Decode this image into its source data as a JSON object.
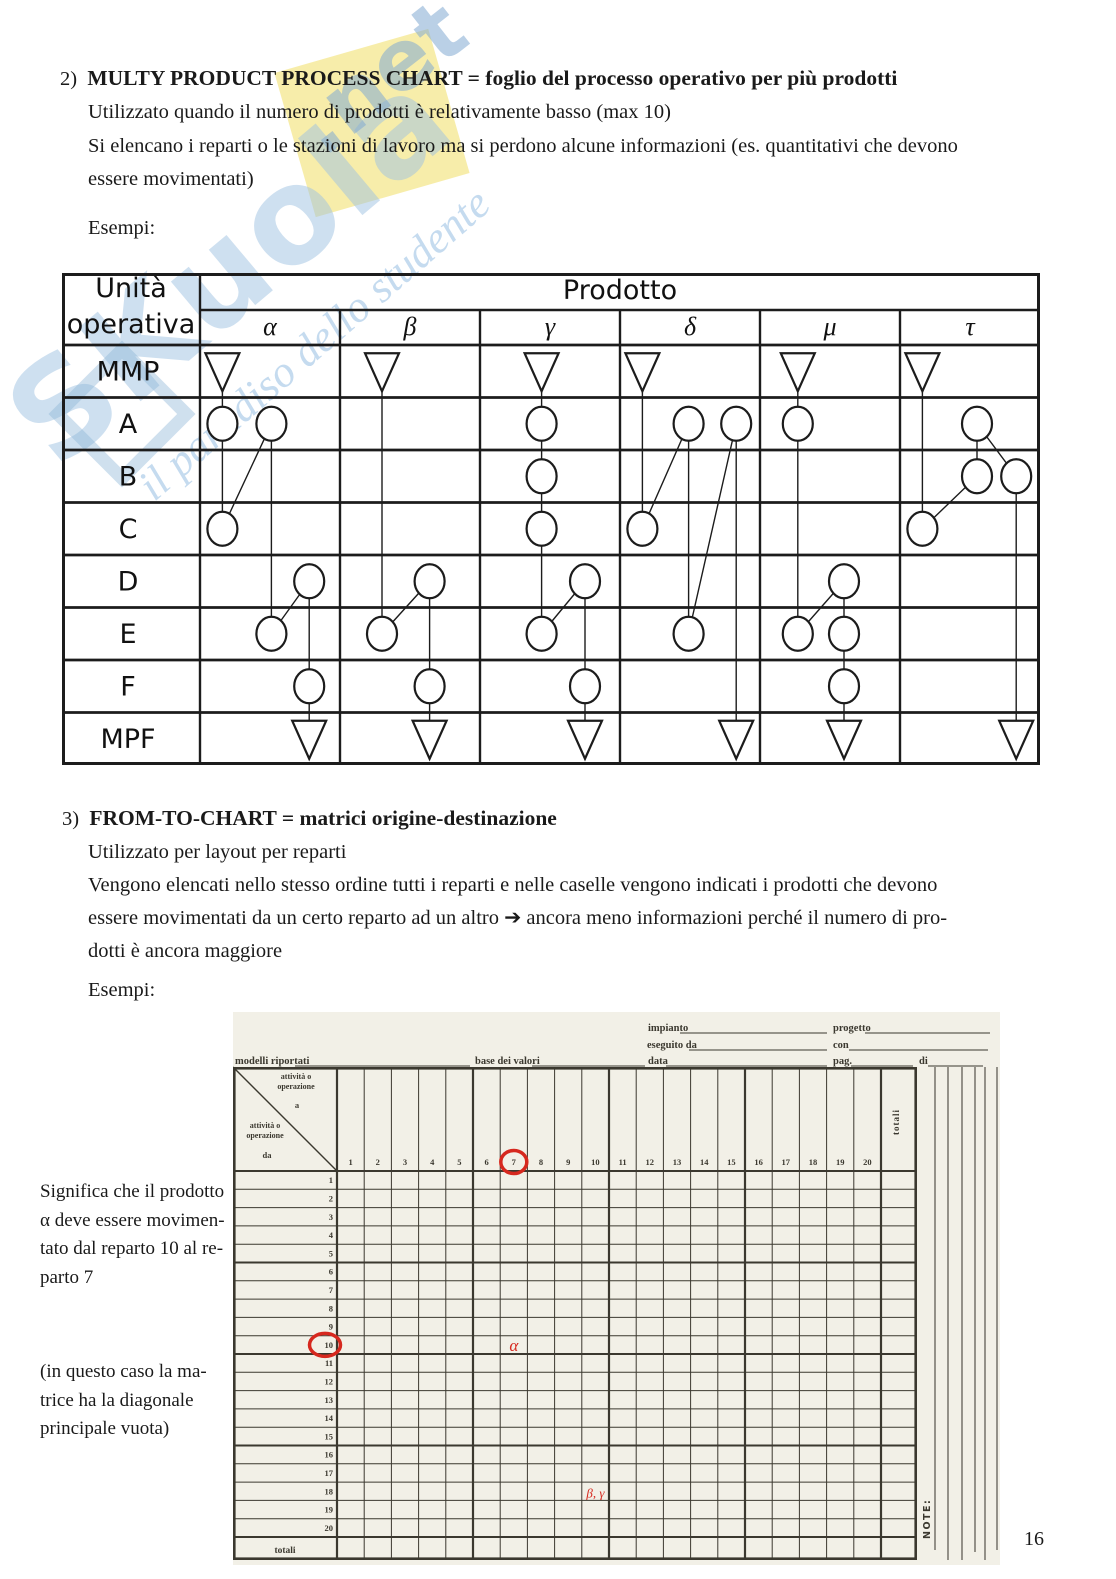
{
  "page": {
    "number": "16"
  },
  "watermark": {
    "brand": "SKuola",
    "net": ".net",
    "slogan": "il paradiso dello studente",
    "blue": "#9ec2e2",
    "yellow": "#f6eba3"
  },
  "section2": {
    "number": "2)",
    "title": "MULTY PRODUCT PROCESS CHART = foglio del processo operativo per più prodotti",
    "lines": [
      "Utilizzato quando il numero di prodotti è relativamente basso (max 10)",
      "Si elencano i reparti o le stazioni di lavoro ma si perdono alcune informazioni (es. quantitativi che devono",
      "essere movimentati)"
    ],
    "example_label": "Esempi:"
  },
  "section3": {
    "number": "3)",
    "title": "FROM-TO-CHART = matrici origine-destinazione",
    "lines": [
      "Utilizzato per layout per reparti",
      "Vengono elencati nello stesso ordine tutti i reparti e nelle caselle vengono indicati i prodotti che devono",
      "essere movimentati da un certo reparto ad un altro ➔ ancora meno informazioni perché il numero di pro-",
      "dotti è ancora maggiore"
    ],
    "example_label": "Esempi:"
  },
  "annotations": {
    "note1_lines": [
      "Significa che il prodotto",
      "α deve essere movimen-",
      "tato dal reparto 10 al re-",
      "parto 7"
    ],
    "note2_lines": [
      "(in questo caso la ma-",
      "trice ha la diagonale",
      "principale vuota)"
    ]
  },
  "chart_data": [
    {
      "type": "table",
      "name": "multi-product-process-chart",
      "corner_header": [
        "Unità",
        "operativa"
      ],
      "col_group_header": "Prodotto",
      "columns": [
        "α",
        "β",
        "γ",
        "δ",
        "μ",
        "τ"
      ],
      "rows": [
        "MMP",
        "A",
        "B",
        "C",
        "D",
        "E",
        "F",
        "MPF"
      ],
      "symbols": {
        "MMP": "triangle-down",
        "MPF": "triangle-down",
        "default": "circle"
      },
      "routes": [
        {
          "product": "α",
          "tracks": [
            0.16,
            0.51,
            0.78
          ],
          "path": [
            [
              "MMP",
              0
            ],
            [
              "A",
              0
            ],
            [
              "C",
              0
            ],
            [
              "A",
              1
            ],
            [
              "E",
              1
            ],
            [
              "D",
              2
            ],
            [
              "F",
              2
            ],
            [
              "MPF",
              2
            ]
          ]
        },
        {
          "product": "β",
          "tracks": [
            0.3,
            0.64
          ],
          "path": [
            [
              "MMP",
              0
            ],
            [
              "E",
              0
            ],
            [
              "D",
              1
            ],
            [
              "F",
              1
            ],
            [
              "MPF",
              1
            ]
          ]
        },
        {
          "product": "γ",
          "tracks": [
            0.44,
            0.75
          ],
          "path": [
            [
              "MMP",
              0
            ],
            [
              "A",
              0
            ],
            [
              "B",
              0
            ],
            [
              "C",
              0
            ],
            [
              "E",
              0
            ],
            [
              "D",
              1
            ],
            [
              "F",
              1
            ],
            [
              "MPF",
              1
            ]
          ]
        },
        {
          "product": "δ",
          "tracks": [
            0.16,
            0.49,
            0.83
          ],
          "path": [
            [
              "MMP",
              0
            ],
            [
              "C",
              0
            ],
            [
              "A",
              1
            ],
            [
              "E",
              1
            ],
            [
              "A",
              2
            ],
            [
              "MPF",
              2
            ]
          ]
        },
        {
          "product": "μ",
          "tracks": [
            0.27,
            0.6
          ],
          "path": [
            [
              "MMP",
              0
            ],
            [
              "A",
              0
            ],
            [
              "E",
              0
            ],
            [
              "D",
              1
            ],
            [
              "E",
              1
            ],
            [
              "F",
              1
            ],
            [
              "MPF",
              1
            ]
          ]
        },
        {
          "product": "τ",
          "tracks": [
            0.16,
            0.55,
            0.83
          ],
          "path": [
            [
              "MMP",
              0
            ],
            [
              "C",
              0
            ],
            [
              "B",
              1
            ],
            [
              "A",
              1
            ],
            [
              "B",
              2
            ],
            [
              "MPF",
              2
            ]
          ]
        }
      ]
    },
    {
      "type": "table",
      "name": "from-to-chart",
      "form_fields": {
        "impianto": "impianto",
        "progetto": "progetto",
        "eseguito_da": "eseguito da",
        "con": "con",
        "modelli_riportati": "modelli riportati",
        "base_dei_valori": "base dei valori",
        "data": "data",
        "pag": "pag.",
        "di": "di"
      },
      "corner": {
        "to_label_1": "attività o",
        "to_label_2": "operazione",
        "to_suffix": "a",
        "from_label_1": "attività o",
        "from_label_2": "operazione",
        "from_suffix": "da"
      },
      "col_numbers": [
        "1",
        "2",
        "3",
        "4",
        "5",
        "6",
        "7",
        "8",
        "9",
        "10",
        "11",
        "12",
        "13",
        "14",
        "15",
        "16",
        "17",
        "18",
        "19",
        "20"
      ],
      "row_numbers": [
        "1",
        "2",
        "3",
        "4",
        "5",
        "6",
        "7",
        "8",
        "9",
        "10",
        "11",
        "12",
        "13",
        "14",
        "15",
        "16",
        "17",
        "18",
        "19",
        "20"
      ],
      "totals_col_label": "totali",
      "totals_row_label": "totali",
      "note_label": "NOTE:",
      "entries": [
        {
          "row": 10,
          "col": 7,
          "text": "α"
        },
        {
          "row": 18,
          "col": 10,
          "text": "β, γ"
        }
      ],
      "highlights": [
        {
          "type": "red-circle",
          "target": "col-header",
          "value": 7
        },
        {
          "type": "red-circle",
          "target": "row-header",
          "value": 10
        }
      ],
      "red": "#d6281e",
      "paper": "#f2f0e7",
      "ink": "#3b382f"
    }
  ]
}
